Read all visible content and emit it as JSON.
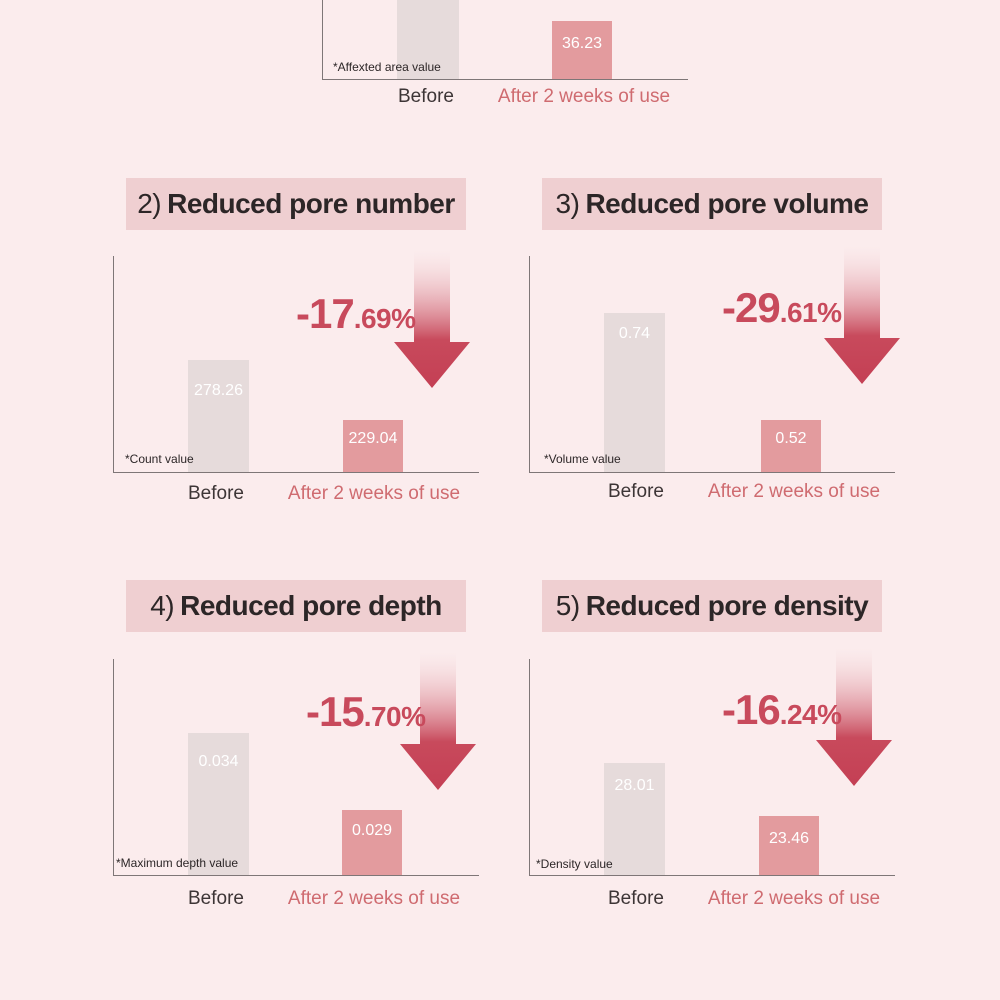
{
  "top_partial": {
    "before_label": "Before",
    "after_label": "After 2 weeks of use",
    "after_value_label": "36.23",
    "note": "*Affexted area value"
  },
  "chart_data": [
    {
      "type": "bar",
      "title_number": "2)",
      "title": "Reduced pore number",
      "categories": [
        "Before",
        "After 2 weeks of use"
      ],
      "values": [
        278.26,
        229.04
      ],
      "value_labels": [
        "278.26",
        "229.04"
      ],
      "note": "*Count value",
      "change_big": "-17",
      "change_small": ".69%",
      "colors": [
        "#e6dbdb",
        "#e39b9e"
      ]
    },
    {
      "type": "bar",
      "title_number": "3)",
      "title": "Reduced pore volume",
      "categories": [
        "Before",
        "After 2 weeks of use"
      ],
      "values": [
        0.74,
        0.52
      ],
      "value_labels": [
        "0.74",
        "0.52"
      ],
      "note": "*Volume value",
      "change_big": "-29",
      "change_small": ".61%",
      "colors": [
        "#e6dbdb",
        "#e39b9e"
      ]
    },
    {
      "type": "bar",
      "title_number": "4)",
      "title": "Reduced pore depth",
      "categories": [
        "Before",
        "After 2 weeks of use"
      ],
      "values": [
        0.034,
        0.029
      ],
      "value_labels": [
        "0.034",
        "0.029"
      ],
      "note": "*Maximum depth value",
      "change_big": "-15",
      "change_small": ".70%",
      "colors": [
        "#e6dbdb",
        "#e39b9e"
      ]
    },
    {
      "type": "bar",
      "title_number": "5)",
      "title": "Reduced pore density",
      "categories": [
        "Before",
        "After 2 weeks of use"
      ],
      "values": [
        28.01,
        23.46
      ],
      "value_labels": [
        "28.01",
        "23.46"
      ],
      "note": "*Density value",
      "change_big": "-16",
      "change_small": ".24%",
      "colors": [
        "#e6dbdb",
        "#e39b9e"
      ]
    }
  ]
}
